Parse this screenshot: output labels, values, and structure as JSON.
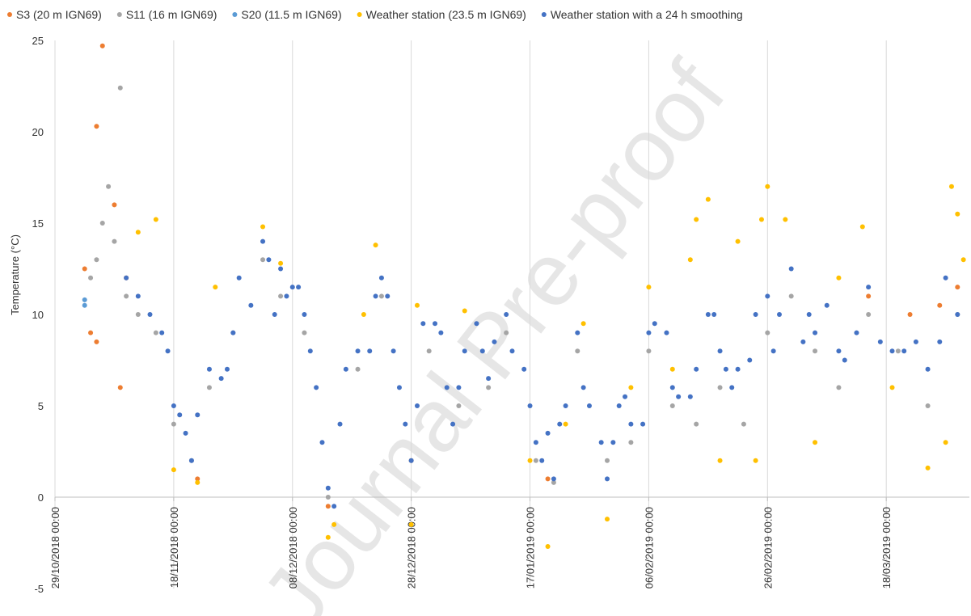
{
  "chart_data": {
    "type": "scatter",
    "y_label": "Temperature (°C)",
    "watermark": "Journal Pre-proof",
    "xlim": [
      "2018-10-29",
      "2019-04-01"
    ],
    "xticks": [
      {
        "value": "2018-10-29",
        "label": "29/10/2018 00:00"
      },
      {
        "value": "2018-11-18",
        "label": "18/11/2018 00:00"
      },
      {
        "value": "2018-12-08",
        "label": "08/12/2018 00:00"
      },
      {
        "value": "2018-12-28",
        "label": "28/12/2018 00:00"
      },
      {
        "value": "2019-01-17",
        "label": "17/01/2019 00:00"
      },
      {
        "value": "2019-02-06",
        "label": "06/02/2019 00:00"
      },
      {
        "value": "2019-02-26",
        "label": "26/02/2019 00:00"
      },
      {
        "value": "2019-03-18",
        "label": "18/03/2019 00:00"
      }
    ],
    "ylim": [
      -5,
      25
    ],
    "yticks": [
      -5,
      0,
      5,
      10,
      15,
      20,
      25
    ],
    "grid": true,
    "series": [
      {
        "name": "S3 (20 m IGN69)",
        "color": "#ed7d31",
        "x": [
          "2018-11-03",
          "2018-11-04",
          "2018-11-05",
          "2018-11-05",
          "2018-11-06",
          "2018-11-08",
          "2018-11-09",
          "2018-11-10",
          "2018-11-22",
          "2018-12-14",
          "2018-12-28",
          "2019-01-20",
          "2019-03-15",
          "2019-03-22",
          "2019-03-27",
          "2019-03-30"
        ],
        "values": [
          12.5,
          9,
          8.5,
          20.3,
          24.7,
          16,
          6,
          12,
          1,
          -0.5,
          2,
          1,
          11,
          10,
          10.5,
          11.5
        ]
      },
      {
        "name": "S11 (16 m IGN69)",
        "color": "#a5a5a5",
        "x": [
          "2018-11-04",
          "2018-11-05",
          "2018-11-06",
          "2018-11-07",
          "2018-11-08",
          "2018-11-09",
          "2018-11-10",
          "2018-11-12",
          "2018-11-15",
          "2018-11-18",
          "2018-11-21",
          "2018-11-24",
          "2018-11-28",
          "2018-12-03",
          "2018-12-06",
          "2018-12-10",
          "2018-12-14",
          "2018-12-19",
          "2018-12-23",
          "2018-12-28",
          "2018-12-31",
          "2019-01-05",
          "2019-01-10",
          "2019-01-13",
          "2019-01-18",
          "2019-01-21",
          "2019-01-25",
          "2019-01-30",
          "2019-02-03",
          "2019-02-06",
          "2019-02-10",
          "2019-02-14",
          "2019-02-18",
          "2019-02-22",
          "2019-02-26",
          "2019-03-02",
          "2019-03-06",
          "2019-03-10",
          "2019-03-15",
          "2019-03-20",
          "2019-03-25",
          "2019-03-30"
        ],
        "values": [
          12,
          13,
          15,
          17,
          14,
          22.4,
          11,
          10,
          9,
          4,
          2,
          6,
          9,
          13,
          11,
          9,
          0,
          7,
          11,
          2,
          8,
          5,
          6,
          9,
          2,
          0.8,
          8,
          2,
          3,
          8,
          5,
          4,
          6,
          4,
          9,
          11,
          8,
          6,
          10,
          8,
          5,
          10
        ]
      },
      {
        "name": "S20 (11.5 m IGN69)",
        "color": "#5b9bd5",
        "x": [
          "2018-11-03",
          "2018-11-03"
        ],
        "values": [
          10.8,
          10.5
        ]
      },
      {
        "name": "Weather station (23.5 m IGN69)",
        "color": "#ffc000",
        "x": [
          "2018-11-12",
          "2018-11-15",
          "2018-11-18",
          "2018-11-22",
          "2018-11-25",
          "2018-12-03",
          "2018-12-06",
          "2018-12-14",
          "2018-12-15",
          "2018-12-20",
          "2018-12-22",
          "2018-12-28",
          "2018-12-29",
          "2019-01-06",
          "2019-01-17",
          "2019-01-20",
          "2019-01-23",
          "2019-01-26",
          "2019-01-30",
          "2019-02-03",
          "2019-02-06",
          "2019-02-10",
          "2019-02-13",
          "2019-02-14",
          "2019-02-16",
          "2019-02-18",
          "2019-02-21",
          "2019-02-24",
          "2019-02-25",
          "2019-02-26",
          "2019-03-01",
          "2019-03-06",
          "2019-03-10",
          "2019-03-14",
          "2019-03-19",
          "2019-03-25",
          "2019-03-28",
          "2019-03-29",
          "2019-03-30",
          "2019-03-31"
        ],
        "values": [
          14.5,
          15.2,
          1.5,
          0.8,
          11.5,
          14.8,
          12.8,
          -2.2,
          -1.5,
          10,
          13.8,
          -1.5,
          10.5,
          10.2,
          2,
          -2.7,
          4,
          9.5,
          -1.2,
          6,
          11.5,
          7,
          13,
          15.2,
          16.3,
          2,
          14,
          2,
          15.2,
          17,
          15.2,
          3,
          12,
          14.8,
          6,
          1.6,
          3,
          17,
          15.5,
          13
        ]
      },
      {
        "name": "Weather station with a 24 h smoothing",
        "color": "#4472c4",
        "x": [
          "2018-11-10",
          "2018-11-12",
          "2018-11-14",
          "2018-11-16",
          "2018-11-17",
          "2018-11-18",
          "2018-11-19",
          "2018-11-20",
          "2018-11-21",
          "2018-11-22",
          "2018-11-24",
          "2018-11-26",
          "2018-11-27",
          "2018-11-28",
          "2018-11-29",
          "2018-12-01",
          "2018-12-03",
          "2018-12-04",
          "2018-12-05",
          "2018-12-06",
          "2018-12-07",
          "2018-12-08",
          "2018-12-09",
          "2018-12-10",
          "2018-12-11",
          "2018-12-12",
          "2018-12-13",
          "2018-12-14",
          "2018-12-15",
          "2018-12-16",
          "2018-12-17",
          "2018-12-19",
          "2018-12-21",
          "2018-12-22",
          "2018-12-23",
          "2018-12-24",
          "2018-12-25",
          "2018-12-26",
          "2018-12-27",
          "2018-12-28",
          "2018-12-29",
          "2018-12-30",
          "2019-01-01",
          "2019-01-02",
          "2019-01-03",
          "2019-01-04",
          "2019-01-05",
          "2019-01-06",
          "2019-01-08",
          "2019-01-09",
          "2019-01-10",
          "2019-01-11",
          "2019-01-13",
          "2019-01-14",
          "2019-01-16",
          "2019-01-17",
          "2019-01-18",
          "2019-01-19",
          "2019-01-20",
          "2019-01-21",
          "2019-01-22",
          "2019-01-23",
          "2019-01-25",
          "2019-01-26",
          "2019-01-27",
          "2019-01-29",
          "2019-01-30",
          "2019-01-31",
          "2019-02-01",
          "2019-02-02",
          "2019-02-03",
          "2019-02-05",
          "2019-02-06",
          "2019-02-07",
          "2019-02-09",
          "2019-02-10",
          "2019-02-11",
          "2019-02-13",
          "2019-02-14",
          "2019-02-16",
          "2019-02-17",
          "2019-02-18",
          "2019-02-19",
          "2019-02-20",
          "2019-02-21",
          "2019-02-23",
          "2019-02-24",
          "2019-02-26",
          "2019-02-27",
          "2019-02-28",
          "2019-03-02",
          "2019-03-04",
          "2019-03-05",
          "2019-03-06",
          "2019-03-08",
          "2019-03-10",
          "2019-03-11",
          "2019-03-13",
          "2019-03-15",
          "2019-03-17",
          "2019-03-19",
          "2019-03-21",
          "2019-03-23",
          "2019-03-25",
          "2019-03-27",
          "2019-03-28",
          "2019-03-30"
        ],
        "values": [
          12,
          11,
          10,
          9,
          8,
          5,
          4.5,
          3.5,
          2,
          4.5,
          7,
          6.5,
          7,
          9,
          12,
          10.5,
          14,
          13,
          10,
          12.5,
          11,
          11.5,
          11.5,
          10,
          8,
          6,
          3,
          0.5,
          -0.5,
          4,
          7,
          8,
          8,
          11,
          12,
          11,
          8,
          6,
          4,
          2,
          5,
          9.5,
          9.5,
          9,
          6,
          4,
          6,
          8,
          9.5,
          8,
          6.5,
          8.5,
          10,
          8,
          7,
          5,
          3,
          2,
          3.5,
          1,
          4,
          5,
          9,
          6,
          5,
          3,
          1,
          3,
          5,
          5.5,
          4,
          4,
          9,
          9.5,
          9,
          6,
          5.5,
          5.5,
          7,
          10,
          10,
          8,
          7,
          6,
          7,
          7.5,
          10,
          11,
          8,
          10,
          12.5,
          8.5,
          10,
          9,
          10.5,
          8,
          7.5,
          9,
          11.5,
          8.5,
          8,
          8,
          8.5,
          7,
          8.5,
          12,
          10
        ]
      }
    ]
  }
}
